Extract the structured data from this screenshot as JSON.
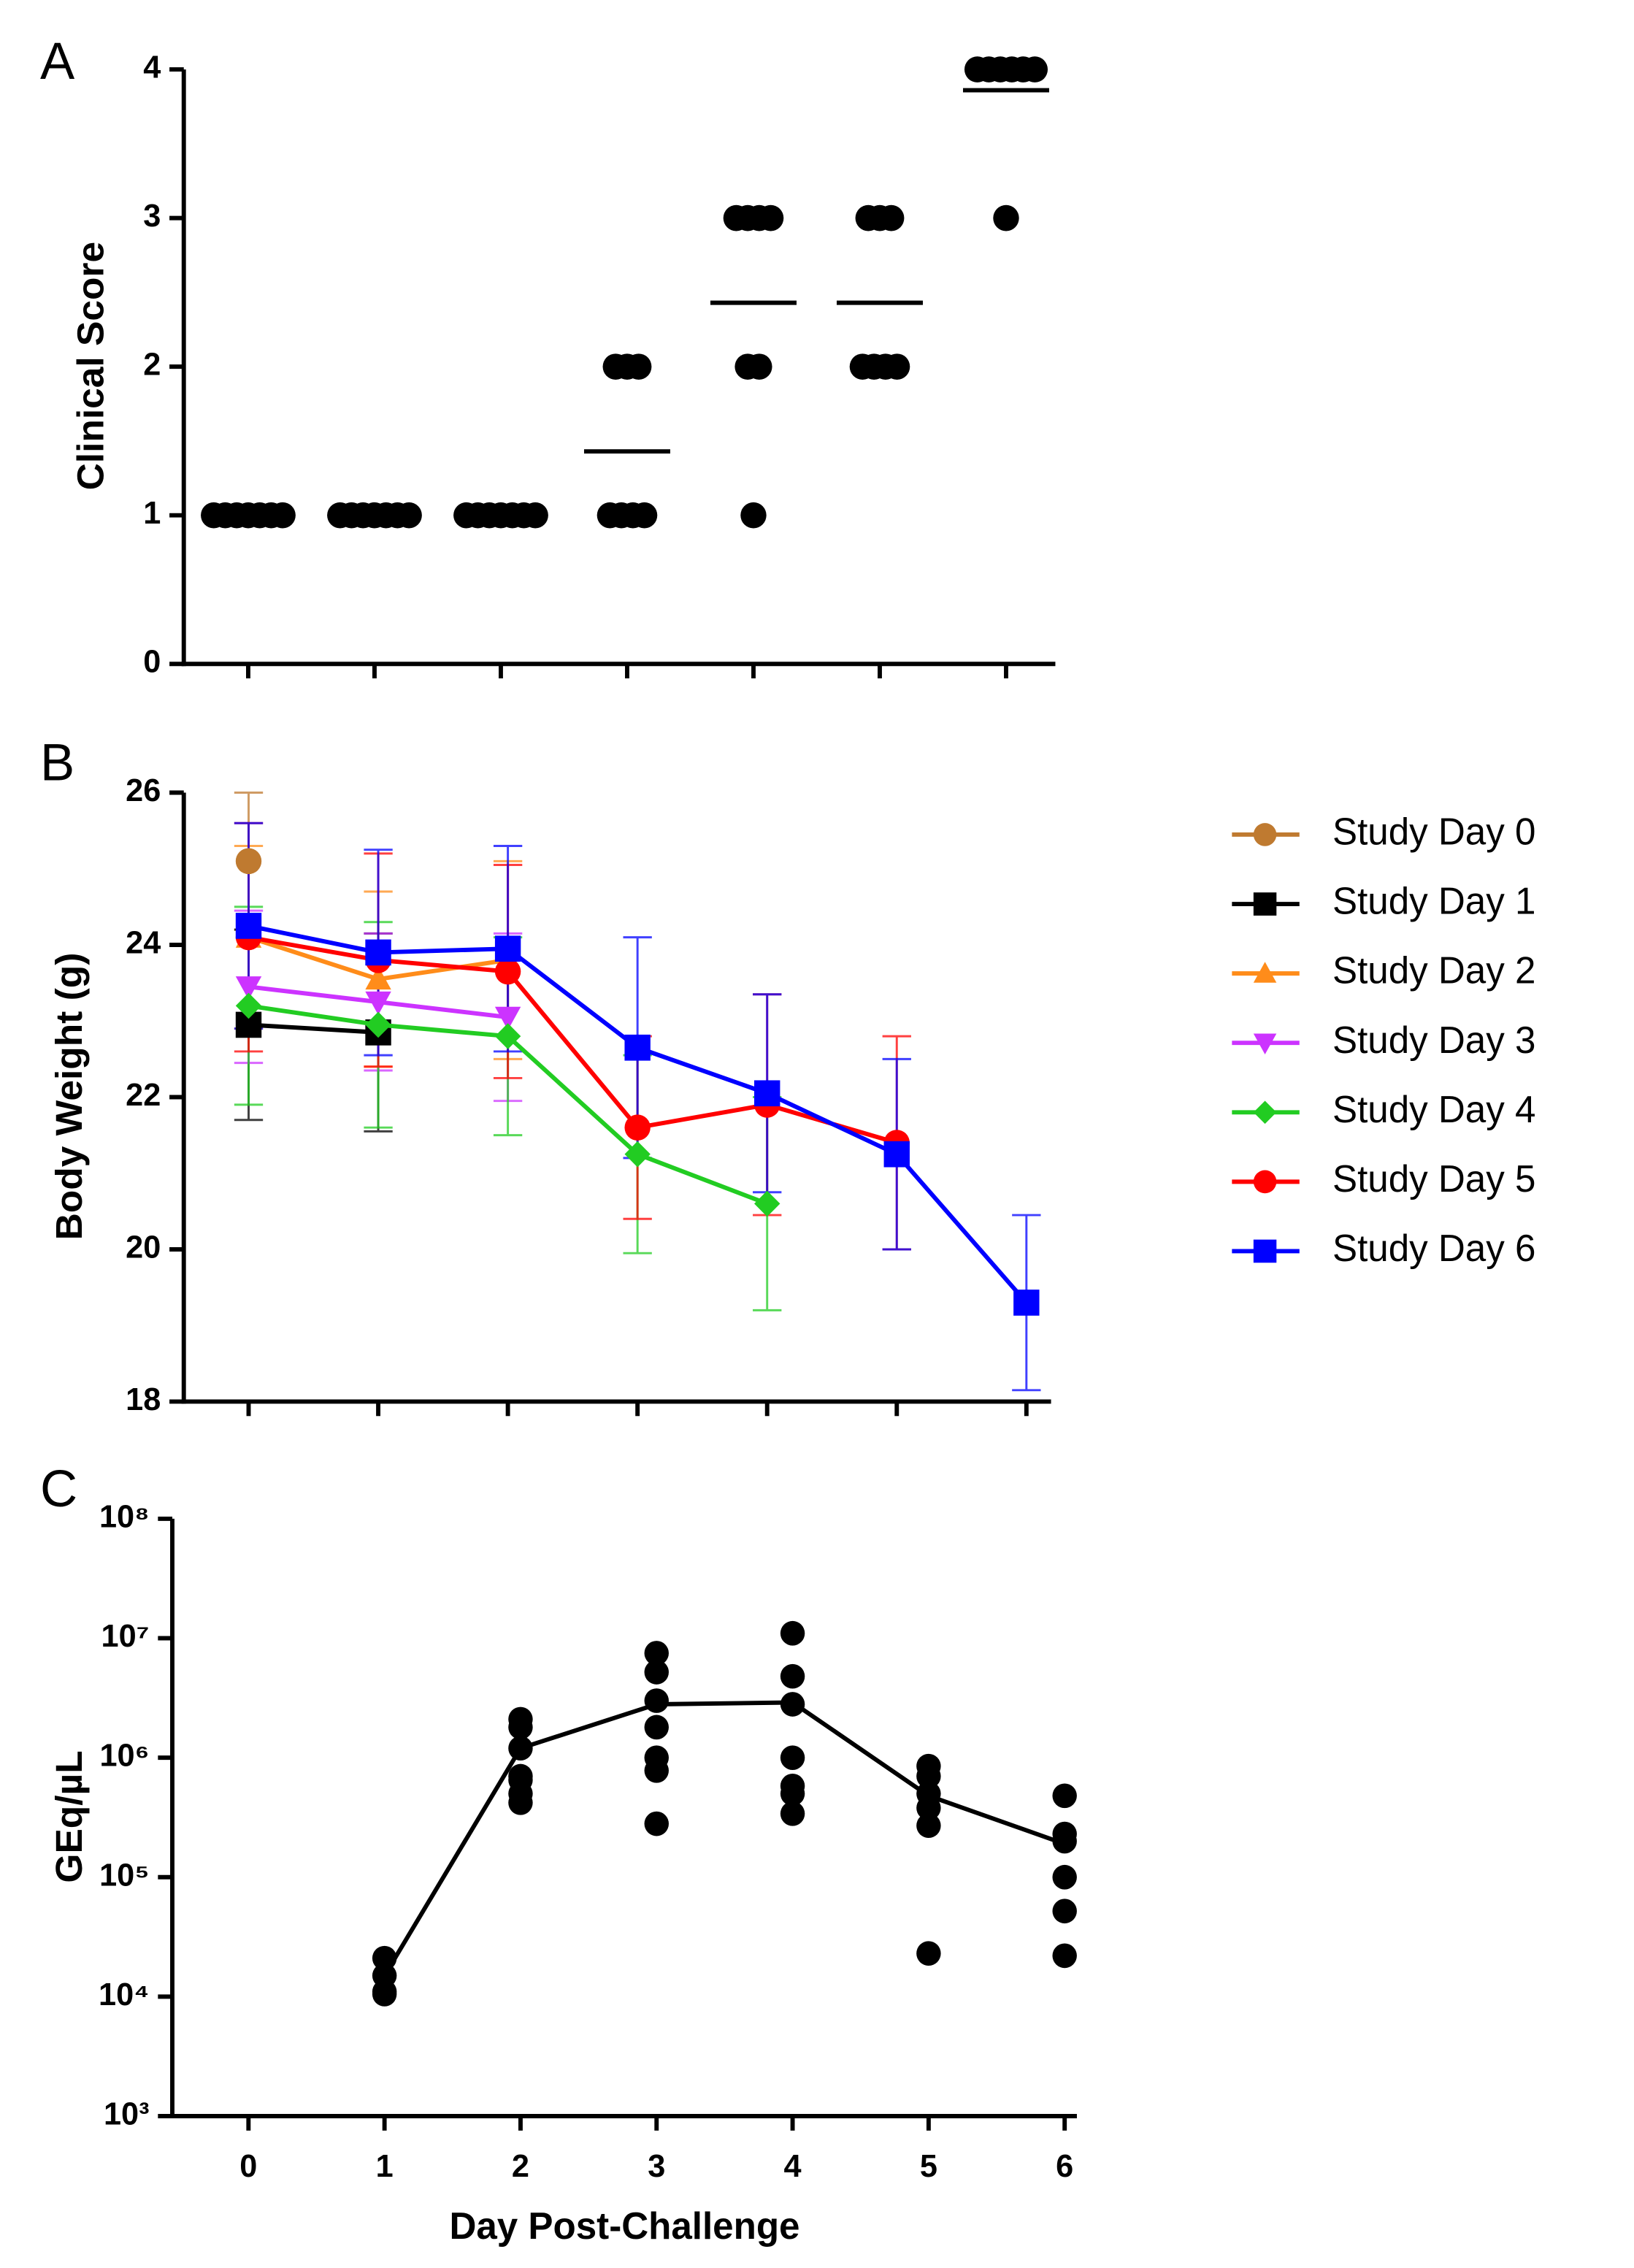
{
  "chart_data": [
    {
      "type": "scatter",
      "panel_label": "A",
      "ylabel": "Clinical Score",
      "x": [
        0,
        1,
        2,
        3,
        4,
        5,
        6
      ],
      "values": [
        [
          1,
          1,
          1,
          1,
          1,
          1,
          1
        ],
        [
          1,
          1,
          1,
          1,
          1,
          1,
          1
        ],
        [
          1,
          1,
          1,
          1,
          1,
          1,
          1
        ],
        [
          1,
          1,
          1,
          1,
          2,
          2,
          2
        ],
        [
          1,
          2,
          2,
          3,
          3,
          3,
          3
        ],
        [
          2,
          2,
          2,
          2,
          3,
          3,
          3
        ],
        [
          3,
          4,
          4,
          4,
          4,
          4,
          4
        ]
      ],
      "means": [
        1,
        1,
        1,
        1.43,
        2.43,
        2.43,
        3.86
      ],
      "mean_style": "bar",
      "swarm": true,
      "color": "#000000",
      "xlim": [
        -0.51,
        6.39
      ],
      "xticks": [
        0,
        1,
        2,
        3,
        4,
        5,
        6
      ],
      "xtick_labels": false,
      "ylim": [
        0,
        4
      ],
      "yticks": [
        0,
        1,
        2,
        3,
        4
      ]
    },
    {
      "type": "line",
      "panel_label": "B",
      "ylabel": "Body Weight (g)",
      "x": [
        0,
        1,
        2,
        3,
        4,
        5,
        6
      ],
      "series": [
        {
          "name": "Study Day 0",
          "color": "#bf7a30",
          "marker": "circle",
          "values": [
            25.1,
            null,
            null,
            null,
            null,
            null,
            null
          ],
          "errors": [
            0.9,
            null,
            null,
            null,
            null,
            null,
            null
          ]
        },
        {
          "name": "Study Day 1",
          "color": "#000000",
          "marker": "square",
          "values": [
            22.95,
            22.85,
            null,
            null,
            null,
            null,
            null
          ],
          "errors": [
            1.25,
            1.3,
            null,
            null,
            null,
            null,
            null
          ]
        },
        {
          "name": "Study Day 2",
          "color": "#ff8c1a",
          "marker": "triangle-up",
          "values": [
            24.1,
            23.55,
            23.8,
            null,
            null,
            null,
            null
          ],
          "errors": [
            1.2,
            1.15,
            1.3,
            null,
            null,
            null,
            null
          ]
        },
        {
          "name": "Study Day 3",
          "color": "#cc33ff",
          "marker": "triangle-down",
          "values": [
            23.45,
            23.25,
            23.05,
            null,
            null,
            null,
            null
          ],
          "errors": [
            1.0,
            0.9,
            1.1,
            null,
            null,
            null,
            null
          ]
        },
        {
          "name": "Study Day 4",
          "color": "#22cc22",
          "marker": "diamond",
          "values": [
            23.2,
            22.95,
            22.8,
            21.25,
            20.6,
            null,
            null
          ],
          "errors": [
            1.3,
            1.35,
            1.3,
            1.3,
            1.4,
            null,
            null
          ]
        },
        {
          "name": "Study Day 5",
          "color": "#ff0000",
          "marker": "circle",
          "values": [
            24.1,
            23.8,
            23.65,
            21.6,
            21.9,
            21.4,
            null
          ],
          "errors": [
            1.5,
            1.4,
            1.4,
            1.2,
            1.45,
            1.4,
            null
          ]
        },
        {
          "name": "Study Day 6",
          "color": "#0000ff",
          "marker": "square",
          "values": [
            24.25,
            23.9,
            23.95,
            22.65,
            22.05,
            21.25,
            19.3
          ],
          "errors": [
            1.35,
            1.35,
            1.35,
            1.45,
            1.3,
            1.25,
            1.15
          ]
        }
      ],
      "xlim": [
        -0.5,
        6.19
      ],
      "xticks": [
        0,
        1,
        2,
        3,
        4,
        5,
        6
      ],
      "xtick_labels": false,
      "ylim": [
        18,
        26
      ],
      "yticks": [
        18,
        20,
        22,
        24,
        26
      ],
      "legend": "right"
    },
    {
      "type": "scatter",
      "panel_label": "C",
      "ylabel": "GEq/µL",
      "xlabel": "Day Post-Challenge",
      "x": [
        1,
        2,
        3,
        4,
        5,
        6
      ],
      "values": [
        [
          21000,
          15000,
          11000,
          10500
        ],
        [
          2100000,
          1800000,
          1200000,
          700000,
          650000,
          500000,
          420000
        ],
        [
          7500000,
          5200000,
          3000000,
          1800000,
          1000000,
          780000,
          280000
        ],
        [
          11000000,
          4800000,
          2800000,
          1000000,
          580000,
          500000,
          340000
        ],
        [
          850000,
          700000,
          500000,
          380000,
          270000,
          23000
        ],
        [
          480000,
          230000,
          200000,
          100000,
          52000,
          22000
        ]
      ],
      "means": [
        15000,
        1200000,
        2800000,
        2900000,
        480000,
        190000
      ],
      "mean_style": "line",
      "swarm": false,
      "color": "#000000",
      "log": true,
      "xlim": [
        -0.56,
        6.09
      ],
      "xticks": [
        0,
        1,
        2,
        3,
        4,
        5,
        6
      ],
      "xtick_labels": true,
      "ylim": [
        1000,
        100000000
      ],
      "yticks": [
        {
          "value": 1000,
          "label": "10³"
        },
        {
          "value": 10000,
          "label": "10⁴"
        },
        {
          "value": 100000,
          "label": "10⁵"
        },
        {
          "value": 1000000,
          "label": "10⁶"
        },
        {
          "value": 10000000,
          "label": "10⁷"
        },
        {
          "value": 100000000,
          "label": "10⁸"
        }
      ]
    }
  ]
}
